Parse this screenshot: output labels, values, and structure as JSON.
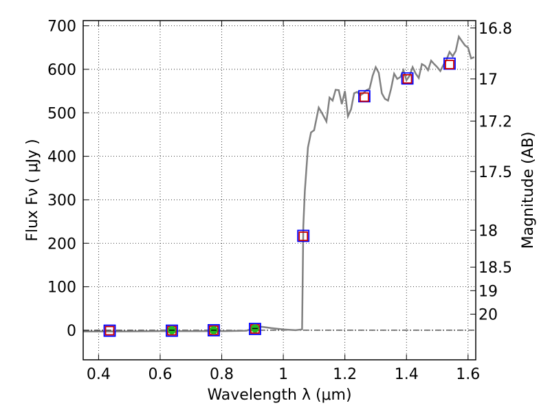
{
  "chart_data": {
    "type": "scatter",
    "xlabel": "Wavelength  λ (μm)",
    "ylabel": "Flux  Fν  ( μJy )",
    "ylabel_right": "Magnitude (AB)",
    "xlim": [
      0.35,
      1.625
    ],
    "ylim": [
      -68,
      712
    ],
    "grid": true,
    "x_ticks": [
      0.4,
      0.6,
      0.8,
      1.0,
      1.2,
      1.4,
      1.6
    ],
    "x_tick_labels": [
      "0.4",
      "0.6",
      "0.8",
      "1",
      "1.2",
      "1.4",
      "1.6"
    ],
    "y_ticks": [
      0,
      100,
      200,
      300,
      400,
      500,
      600,
      700
    ],
    "y_tick_labels": [
      "0",
      "100",
      "200",
      "300",
      "400",
      "500",
      "600",
      "700"
    ],
    "right_ticks": [
      {
        "label": "16.8",
        "flux": 695
      },
      {
        "label": "17",
        "flux": 578
      },
      {
        "label": "17.2",
        "flux": 481
      },
      {
        "label": "17.5",
        "flux": 365
      },
      {
        "label": "18",
        "flux": 230
      },
      {
        "label": "18.5",
        "flux": 145
      },
      {
        "label": "19",
        "flux": 91
      },
      {
        "label": "20",
        "flux": 37
      }
    ],
    "series": [
      {
        "type": "line",
        "color": "#808080",
        "x": [
          0.35,
          0.45,
          0.6,
          0.8,
          0.88,
          0.91,
          0.93,
          0.96,
          1.0,
          1.04,
          1.061,
          1.065,
          1.07,
          1.08,
          1.09,
          1.1,
          1.115,
          1.125,
          1.14,
          1.15,
          1.16,
          1.17,
          1.18,
          1.19,
          1.2,
          1.21,
          1.22,
          1.23,
          1.24,
          1.25,
          1.26,
          1.27,
          1.28,
          1.29,
          1.3,
          1.31,
          1.32,
          1.33,
          1.34,
          1.35,
          1.36,
          1.37,
          1.38,
          1.39,
          1.4,
          1.41,
          1.42,
          1.43,
          1.44,
          1.45,
          1.46,
          1.47,
          1.48,
          1.49,
          1.5,
          1.51,
          1.52,
          1.53,
          1.54,
          1.55,
          1.56,
          1.57,
          1.58,
          1.59,
          1.6,
          1.61,
          1.62
        ],
        "y": [
          -3,
          -3,
          -2,
          -2,
          -1,
          6,
          8,
          5,
          2,
          0,
          2,
          240,
          320,
          420,
          455,
          460,
          512,
          500,
          480,
          535,
          528,
          553,
          552,
          520,
          550,
          492,
          508,
          545,
          548,
          540,
          545,
          552,
          555,
          585,
          605,
          592,
          545,
          532,
          528,
          555,
          590,
          578,
          582,
          598,
          575,
          585,
          605,
          590,
          580,
          612,
          608,
          598,
          620,
          612,
          605,
          596,
          610,
          622,
          640,
          630,
          642,
          675,
          665,
          655,
          650,
          625,
          628
        ]
      },
      {
        "type": "scatter",
        "marker": "square",
        "color": "#0000ff",
        "x": [
          0.436,
          0.638,
          0.774,
          0.908,
          1.065,
          1.263,
          1.403,
          1.54
        ],
        "y": [
          -1,
          -1,
          0,
          3,
          217,
          538,
          579,
          613
        ]
      },
      {
        "type": "scatter",
        "marker": "square",
        "color": "#cc0000",
        "x": [
          0.436,
          0.638,
          0.774,
          0.908,
          1.065,
          1.263,
          1.403,
          1.54
        ],
        "y": [
          -1,
          -1,
          0,
          3,
          216,
          536,
          578,
          611
        ]
      },
      {
        "type": "scatter",
        "marker": "circle",
        "color": "#22bb22",
        "x": [
          0.638,
          0.774,
          0.908
        ],
        "y": [
          0,
          0,
          4
        ]
      }
    ],
    "zero_line": {
      "y": 0,
      "style": "dash-dot"
    }
  }
}
